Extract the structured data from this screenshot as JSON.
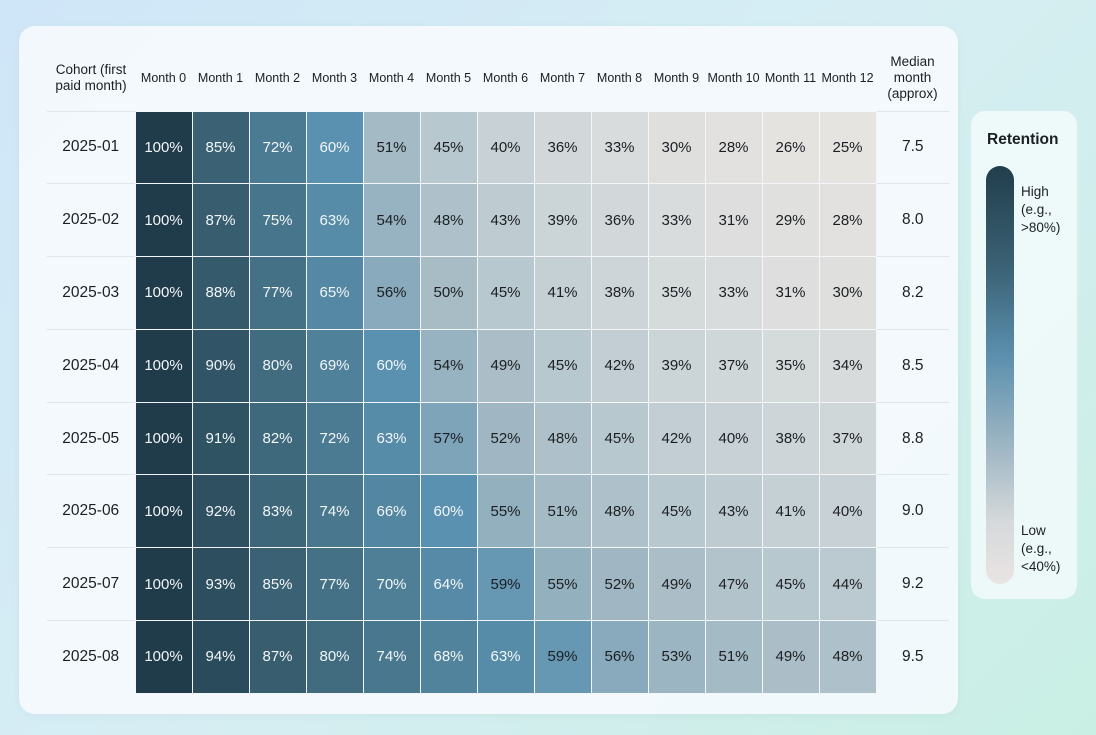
{
  "chart_data": {
    "type": "heatmap",
    "row_header": "Cohort (first paid month)",
    "extra_header": "Median month (approx)",
    "columns": [
      "Month 0",
      "Month 1",
      "Month 2",
      "Month 3",
      "Month 4",
      "Month 5",
      "Month 6",
      "Month 7",
      "Month 8",
      "Month 9",
      "Month 10",
      "Month 11",
      "Month 12"
    ],
    "rows": [
      {
        "cohort": "2025-01",
        "values": [
          100,
          85,
          72,
          60,
          51,
          45,
          40,
          36,
          33,
          30,
          28,
          26,
          25
        ],
        "median": "7.5"
      },
      {
        "cohort": "2025-02",
        "values": [
          100,
          87,
          75,
          63,
          54,
          48,
          43,
          39,
          36,
          33,
          31,
          29,
          28
        ],
        "median": "8.0"
      },
      {
        "cohort": "2025-03",
        "values": [
          100,
          88,
          77,
          65,
          56,
          50,
          45,
          41,
          38,
          35,
          33,
          31,
          30
        ],
        "median": "8.2"
      },
      {
        "cohort": "2025-04",
        "values": [
          100,
          90,
          80,
          69,
          60,
          54,
          49,
          45,
          42,
          39,
          37,
          35,
          34
        ],
        "median": "8.5"
      },
      {
        "cohort": "2025-05",
        "values": [
          100,
          91,
          82,
          72,
          63,
          57,
          52,
          48,
          45,
          42,
          40,
          38,
          37
        ],
        "median": "8.8"
      },
      {
        "cohort": "2025-06",
        "values": [
          100,
          92,
          83,
          74,
          66,
          60,
          55,
          51,
          48,
          45,
          43,
          41,
          40
        ],
        "median": "9.0"
      },
      {
        "cohort": "2025-07",
        "values": [
          100,
          93,
          85,
          77,
          70,
          64,
          59,
          55,
          52,
          49,
          47,
          45,
          44
        ],
        "median": "9.2"
      },
      {
        "cohort": "2025-08",
        "values": [
          100,
          94,
          87,
          80,
          74,
          68,
          63,
          59,
          56,
          53,
          51,
          49,
          48
        ],
        "median": "9.5"
      }
    ],
    "value_suffix": "%",
    "legend": {
      "title": "Retention",
      "high": "High\n(e.g.,\n>80%)",
      "low": "Low\n(e.g.,\n<40%)",
      "position": "right"
    },
    "colors": {
      "high": "#213e4c",
      "mid": "#5a8fad",
      "low": "#e6e4e1"
    }
  }
}
